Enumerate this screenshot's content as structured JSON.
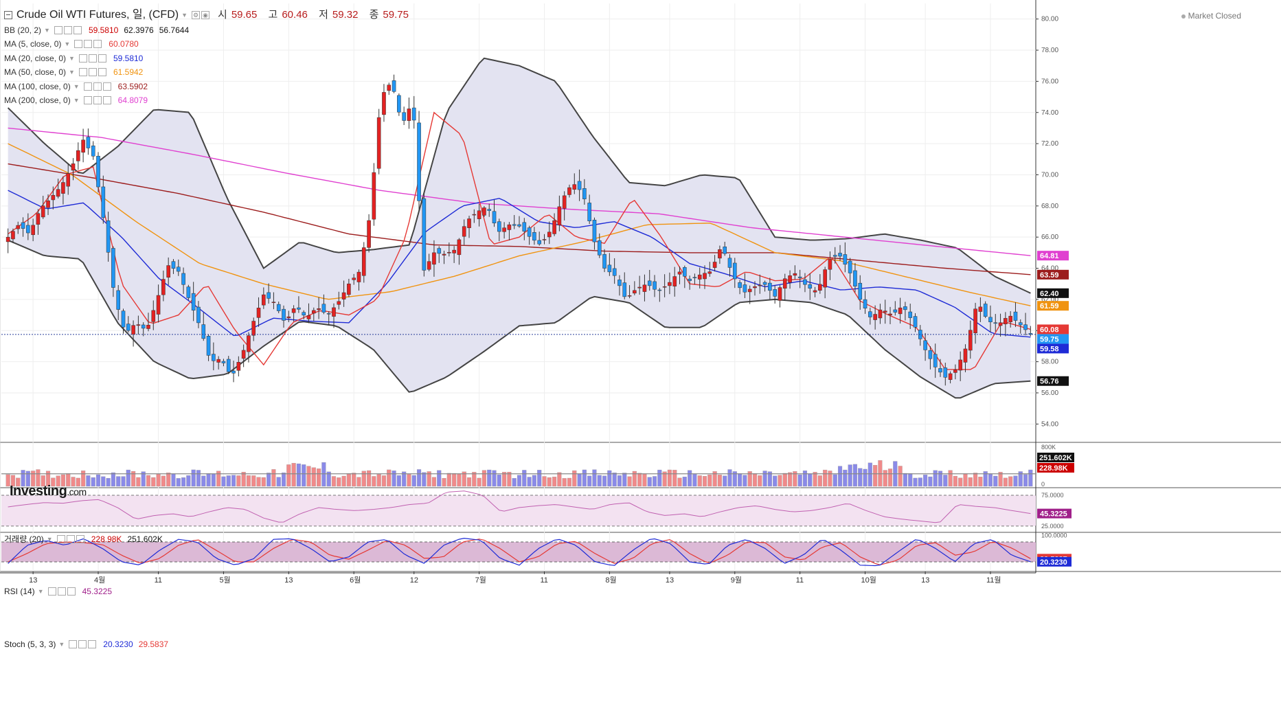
{
  "header": {
    "collapse_icon": "minus-box-icon",
    "title": "Crude Oil WTI Futures, 일, (CFD)",
    "ohlc": [
      {
        "label": "시",
        "value": "59.65"
      },
      {
        "label": "고",
        "value": "60.46"
      },
      {
        "label": "저",
        "value": "59.32"
      },
      {
        "label": "종",
        "value": "59.75"
      }
    ],
    "market_status": "Market Closed"
  },
  "indicators": [
    {
      "name": "BB (20, 2)",
      "values": [
        "59.5810",
        "62.3976",
        "56.7644"
      ],
      "colors": [
        "#cc0000",
        "#111111",
        "#111111"
      ]
    },
    {
      "name": "MA (5, close, 0)",
      "values": [
        "60.0780"
      ],
      "colors": [
        "#e53935"
      ]
    },
    {
      "name": "MA (20, close, 0)",
      "values": [
        "59.5810"
      ],
      "colors": [
        "#1e2bd6"
      ]
    },
    {
      "name": "MA (50, close, 0)",
      "values": [
        "61.5942"
      ],
      "colors": [
        "#f0930f"
      ]
    },
    {
      "name": "MA (100, close, 0)",
      "values": [
        "63.5902"
      ],
      "colors": [
        "#9c1c1c"
      ]
    },
    {
      "name": "MA (200, close, 0)",
      "values": [
        "64.8079"
      ],
      "colors": [
        "#e040d0"
      ]
    }
  ],
  "logo": {
    "text": "Investing",
    "suffix": ".com"
  },
  "volume_pane": {
    "name": "거래량 (20)",
    "values": [
      "228.98K",
      "251.602K"
    ],
    "colors": [
      "#cc0000",
      "#111111"
    ]
  },
  "rsi_pane": {
    "name": "RSI (14)",
    "values": [
      "45.3225"
    ],
    "colors": [
      "#a0208a"
    ]
  },
  "stoch_pane": {
    "name": "Stoch (5, 3, 3)",
    "values": [
      "20.3230",
      "29.5837"
    ],
    "colors": [
      "#1e2bd6",
      "#e53935"
    ]
  },
  "colors": {
    "up": "#e32222",
    "down": "#2196f3",
    "bb_fill": "#e3e3f1",
    "bb_line": "#444444",
    "grid": "#eeeeee",
    "vol_up": "#f08a8a",
    "vol_down": "#8a8ae8",
    "rsi_fill": "#f3e2f1",
    "stoch_fill": "#dcb9d6"
  },
  "chart_data": [
    {
      "type": "candlestick",
      "title": "Crude Oil WTI Futures, 일, (CFD)",
      "ylim": [
        53,
        81
      ],
      "y_ticks": [
        "54.00",
        "56.00",
        "58.00",
        "60.00",
        "62.00",
        "64.00",
        "66.00",
        "68.00",
        "70.00",
        "72.00",
        "74.00",
        "76.00",
        "78.00",
        "80.00"
      ],
      "x_tick_labels": [
        "13",
        "4월",
        "11",
        "5월",
        "13",
        "6월",
        "12",
        "7월",
        "11",
        "8월",
        "13",
        "9월",
        "11",
        "10월",
        "13",
        "11월"
      ],
      "current_price": 59.75,
      "price_labels": [
        {
          "text": "64.81",
          "value": 64.81,
          "color": "#e040d0"
        },
        {
          "text": "63.59",
          "value": 63.59,
          "color": "#9c1c1c"
        },
        {
          "text": "62.40",
          "value": 62.4,
          "color": "#111111"
        },
        {
          "text": "61.59",
          "value": 61.59,
          "color": "#f0930f"
        },
        {
          "text": "60.08",
          "value": 60.08,
          "color": "#e53935"
        },
        {
          "text": "59.75",
          "value": 59.75,
          "color": "#2196f3"
        },
        {
          "text": "59.58",
          "value": 59.58,
          "color": "#1e2bd6"
        },
        {
          "text": "56.76",
          "value": 56.76,
          "color": "#111111"
        }
      ],
      "close_anchors": [
        66.0,
        66.8,
        66.2,
        67.8,
        68.5,
        69.3,
        70.5,
        72.3,
        71.2,
        67.0,
        62.2,
        59.8,
        60.5,
        60.0,
        62.0,
        64.2,
        63.8,
        62.0,
        60.3,
        58.0,
        58.2,
        57.0,
        58.5,
        60.5,
        62.3,
        61.8,
        60.5,
        61.6,
        60.8,
        61.5,
        61.0,
        61.8,
        63.0,
        63.8,
        67.5,
        75.0,
        76.0,
        73.2,
        74.8,
        63.8,
        65.0,
        64.9,
        65.2,
        67.0,
        67.6,
        68.0,
        66.3,
        66.8,
        66.7,
        66.0,
        65.5,
        66.5,
        68.4,
        69.5,
        68.8,
        65.8,
        64.0,
        63.5,
        62.0,
        62.7,
        63.0,
        62.5,
        63.0,
        63.8,
        63.2,
        63.6,
        63.8,
        65.5,
        63.6,
        62.4,
        62.8,
        63.0,
        62.2,
        63.4,
        63.7,
        62.8,
        62.5,
        64.5,
        64.9,
        63.8,
        62.0,
        60.8,
        61.4,
        61.0,
        61.6,
        60.5,
        58.9,
        57.7,
        57.0,
        57.5,
        59.0,
        61.9,
        60.6,
        60.4,
        61.0,
        60.4,
        59.75
      ],
      "bb_upper_anchors": [
        74.3,
        72.0,
        70.0,
        71.8,
        74.2,
        74.0,
        68.5,
        64.0,
        65.7,
        65.0,
        65.2,
        65.5,
        74.0,
        77.5,
        77.0,
        76.0,
        72.5,
        69.5,
        69.3,
        70.0,
        69.8,
        66.0,
        65.8,
        65.9,
        66.2,
        65.8,
        65.3,
        63.5,
        62.4
      ],
      "bb_lower_anchors": [
        65.8,
        64.8,
        64.6,
        60.5,
        58.0,
        56.9,
        57.2,
        59.0,
        60.6,
        60.3,
        58.8,
        56.0,
        57.0,
        58.6,
        60.3,
        60.5,
        62.2,
        61.8,
        60.2,
        60.2,
        61.8,
        62.0,
        61.8,
        61.0,
        58.8,
        57.0,
        55.6,
        56.6,
        56.76
      ],
      "ma5_anchors": [
        66.2,
        67.5,
        70.0,
        70.5,
        63.0,
        60.4,
        61.0,
        63.0,
        60.0,
        57.8,
        60.5,
        61.3,
        61.0,
        62.0,
        66.0,
        74.0,
        72.5,
        65.5,
        66.0,
        67.5,
        66.0,
        65.6,
        68.5,
        66.0,
        63.0,
        62.8,
        63.8,
        63.2,
        63.3,
        64.8,
        61.9,
        61.0,
        60.2,
        57.5,
        57.5,
        60.6,
        60.08
      ],
      "ma20_anchors": [
        69.0,
        67.8,
        68.2,
        66.0,
        63.3,
        61.5,
        59.6,
        60.8,
        60.6,
        60.5,
        63.0,
        66.3,
        68.0,
        68.5,
        67.0,
        66.6,
        67.0,
        66.0,
        64.3,
        63.6,
        62.8,
        63.2,
        62.6,
        62.8,
        62.6,
        61.5,
        59.8,
        59.58
      ],
      "ma50_anchors": [
        72.0,
        70.0,
        67.0,
        64.3,
        63.0,
        62.0,
        62.5,
        63.5,
        64.8,
        65.7,
        66.8,
        66.9,
        65.0,
        64.5,
        63.5,
        62.5,
        61.59
      ],
      "ma100_anchors": [
        70.7,
        69.8,
        68.8,
        67.6,
        66.2,
        65.5,
        65.4,
        65.1,
        65.0,
        65.0,
        64.5,
        64.0,
        63.59
      ],
      "ma200_anchors": [
        73.0,
        72.4,
        71.3,
        70.1,
        69.0,
        68.2,
        67.8,
        67.5,
        66.6,
        66.0,
        65.4,
        64.81
      ]
    },
    {
      "type": "bar",
      "title": "거래량 (20)",
      "ylim": [
        0,
        800000
      ],
      "y_ticks": [
        "800K",
        "0"
      ],
      "value_labels": [
        {
          "text": "251.602K",
          "value": 251602,
          "color": "#111111"
        },
        {
          "text": "228.98K",
          "value": 228980,
          "color": "#cc0000"
        }
      ],
      "volume_ma": 251602,
      "last_volume": 228980
    },
    {
      "type": "line",
      "title": "RSI (14)",
      "ylim": [
        17,
        85
      ],
      "y_ticks": [
        "75.0000",
        "25.0000"
      ],
      "bands": [
        25,
        75
      ],
      "value_labels": [
        {
          "text": "45.3225",
          "value": 45.3225,
          "color": "#a0208a"
        }
      ],
      "rsi_anchors": [
        56,
        60,
        63,
        62,
        66,
        68,
        55,
        36,
        42,
        45,
        40,
        48,
        55,
        52,
        38,
        30,
        45,
        55,
        52,
        50,
        52,
        55,
        60,
        62,
        80,
        82,
        75,
        48,
        55,
        58,
        60,
        56,
        52,
        60,
        63,
        48,
        42,
        45,
        40,
        48,
        55,
        58,
        52,
        48,
        50,
        55,
        62,
        50,
        40,
        36,
        33,
        30,
        60,
        57,
        55,
        50,
        45.3
      ]
    },
    {
      "type": "line",
      "title": "Stoch (5, 3, 3)",
      "ylim": [
        -5,
        105
      ],
      "y_ticks": [
        "100.0000"
      ],
      "bands": [
        20,
        80
      ],
      "value_labels": [
        {
          "text": "29.5837",
          "value": 29.5837,
          "color": "#e53935"
        },
        {
          "text": "20.3230",
          "value": 20.323,
          "color": "#1e2bd6"
        }
      ],
      "k_anchors": [
        15,
        70,
        85,
        70,
        90,
        60,
        20,
        10,
        55,
        88,
        80,
        30,
        10,
        30,
        88,
        90,
        60,
        20,
        35,
        80,
        88,
        40,
        15,
        70,
        92,
        85,
        30,
        10,
        60,
        90,
        70,
        20,
        8,
        55,
        92,
        75,
        20,
        12,
        70,
        88,
        60,
        15,
        40,
        90,
        55,
        10,
        8,
        50,
        90,
        60,
        20,
        75,
        88,
        40,
        20.3
      ],
      "d_anchors": [
        20,
        45,
        75,
        80,
        78,
        72,
        40,
        15,
        30,
        70,
        88,
        55,
        20,
        20,
        60,
        88,
        80,
        40,
        28,
        55,
        85,
        70,
        30,
        35,
        80,
        90,
        60,
        20,
        35,
        75,
        82,
        45,
        15,
        30,
        75,
        88,
        45,
        15,
        40,
        80,
        78,
        35,
        25,
        65,
        78,
        35,
        10,
        25,
        70,
        78,
        40,
        50,
        82,
        62,
        29.6
      ]
    }
  ]
}
